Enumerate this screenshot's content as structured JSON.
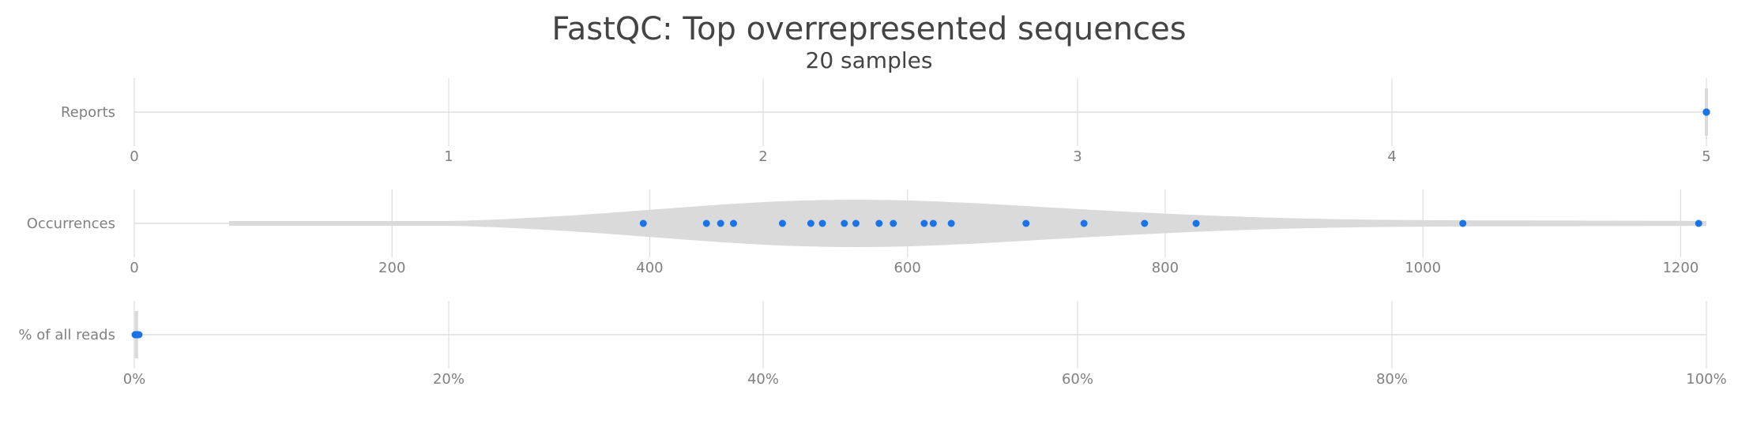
{
  "chart_data": {
    "type": "violin",
    "title": "FastQC: Top overrepresented sequences",
    "subtitle": "20 samples",
    "point_color": "#1a73e8",
    "violin_color": "#dadada",
    "rows": [
      {
        "label": "Reports",
        "xlim": [
          0,
          5
        ],
        "ticks": [
          0,
          1,
          2,
          3,
          4,
          5
        ],
        "tick_labels": [
          "0",
          "1",
          "2",
          "3",
          "4",
          "5"
        ],
        "values": [
          5,
          5,
          5,
          5,
          5,
          5,
          5,
          5,
          5,
          5,
          5,
          5,
          5,
          5,
          5,
          5,
          5,
          5,
          5,
          5
        ]
      },
      {
        "label": "Occurrences",
        "xlim": [
          0,
          1220
        ],
        "ticks": [
          0,
          200,
          400,
          600,
          800,
          1000,
          1200
        ],
        "tick_labels": [
          "0",
          "200",
          "400",
          "600",
          "800",
          "1000",
          "1200"
        ],
        "values": [
          395,
          444,
          455,
          465,
          503,
          525,
          534,
          551,
          560,
          578,
          589,
          613,
          620,
          634,
          692,
          737,
          784,
          824,
          1031,
          1214
        ]
      },
      {
        "label": "% of all reads",
        "xlim": [
          0,
          100
        ],
        "ticks": [
          0,
          20,
          40,
          60,
          80,
          100
        ],
        "tick_labels": [
          "0%",
          "20%",
          "40%",
          "60%",
          "80%",
          "100%"
        ],
        "values": [
          0.05,
          0.06,
          0.07,
          0.08,
          0.09,
          0.1,
          0.1,
          0.11,
          0.12,
          0.12,
          0.13,
          0.14,
          0.15,
          0.16,
          0.17,
          0.18,
          0.2,
          0.22,
          0.25,
          0.3
        ]
      }
    ]
  }
}
